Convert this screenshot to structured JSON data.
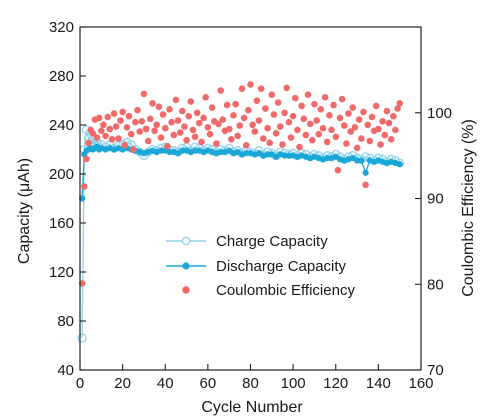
{
  "chart_data": {
    "type": "scatter",
    "title": "",
    "xlabel": "Cycle Number",
    "ylabel_left": "Capacity (μAh)",
    "ylabel_right": "Coulombic Efficiency (%)",
    "xlim": [
      0,
      160
    ],
    "ylim_left": [
      40,
      320
    ],
    "ylim_right": [
      70,
      110
    ],
    "x_ticks": [
      "0",
      "20",
      "40",
      "60",
      "80",
      "100",
      "120",
      "140",
      "160"
    ],
    "y_ticks_left": [
      "40",
      "80",
      "120",
      "160",
      "200",
      "240",
      "280",
      "320"
    ],
    "y_ticks_right": [
      "70",
      "80",
      "90",
      "100"
    ],
    "grid": false,
    "legend_position": "center-right",
    "series": [
      {
        "name": "Charge Capacity",
        "axis": "left",
        "marker": "open-circle",
        "line": true,
        "color": "#8fd3ec",
        "points": [
          [
            1,
            66
          ],
          [
            2,
            220
          ],
          [
            3,
            236
          ],
          [
            4,
            229
          ],
          [
            5,
            226
          ],
          [
            6,
            228
          ],
          [
            7,
            224
          ],
          [
            8,
            226
          ],
          [
            9,
            222
          ],
          [
            10,
            224
          ],
          [
            12,
            222
          ],
          [
            14,
            224
          ],
          [
            16,
            221
          ],
          [
            18,
            223
          ],
          [
            20,
            224
          ],
          [
            22,
            226
          ],
          [
            24,
            224
          ],
          [
            26,
            220
          ],
          [
            28,
            218
          ],
          [
            30,
            215
          ],
          [
            32,
            218
          ],
          [
            34,
            220
          ],
          [
            36,
            219
          ],
          [
            38,
            221
          ],
          [
            40,
            222
          ],
          [
            42,
            220
          ],
          [
            44,
            219
          ],
          [
            46,
            218
          ],
          [
            48,
            221
          ],
          [
            50,
            222
          ],
          [
            52,
            219
          ],
          [
            54,
            222
          ],
          [
            56,
            221
          ],
          [
            58,
            219
          ],
          [
            60,
            221
          ],
          [
            62,
            220
          ],
          [
            64,
            218
          ],
          [
            66,
            220
          ],
          [
            68,
            219
          ],
          [
            70,
            221
          ],
          [
            72,
            218
          ],
          [
            74,
            219
          ],
          [
            76,
            217
          ],
          [
            78,
            219
          ],
          [
            80,
            218
          ],
          [
            82,
            217
          ],
          [
            84,
            219
          ],
          [
            86,
            216
          ],
          [
            88,
            218
          ],
          [
            90,
            217
          ],
          [
            92,
            215
          ],
          [
            94,
            218
          ],
          [
            96,
            217
          ],
          [
            98,
            216
          ],
          [
            100,
            217
          ],
          [
            102,
            215
          ],
          [
            104,
            217
          ],
          [
            106,
            216
          ],
          [
            108,
            214
          ],
          [
            110,
            216
          ],
          [
            112,
            215
          ],
          [
            114,
            213
          ],
          [
            116,
            215
          ],
          [
            118,
            214
          ],
          [
            120,
            216
          ],
          [
            122,
            214
          ],
          [
            124,
            212
          ],
          [
            126,
            214
          ],
          [
            128,
            215
          ],
          [
            130,
            213
          ],
          [
            132,
            212
          ],
          [
            134,
            214
          ],
          [
            136,
            213
          ],
          [
            138,
            211
          ],
          [
            140,
            213
          ],
          [
            142,
            212
          ],
          [
            144,
            210
          ],
          [
            146,
            212
          ],
          [
            148,
            211
          ],
          [
            150,
            209
          ]
        ]
      },
      {
        "name": "Discharge Capacity",
        "axis": "left",
        "marker": "filled-circle",
        "line": true,
        "color": "#1aa7d8",
        "points": [
          [
            1,
            180
          ],
          [
            2,
            216
          ],
          [
            3,
            219
          ],
          [
            4,
            220
          ],
          [
            5,
            221
          ],
          [
            6,
            220
          ],
          [
            7,
            221
          ],
          [
            8,
            222
          ],
          [
            9,
            220
          ],
          [
            10,
            221
          ],
          [
            12,
            220
          ],
          [
            14,
            221
          ],
          [
            16,
            220
          ],
          [
            18,
            221
          ],
          [
            20,
            220
          ],
          [
            22,
            221
          ],
          [
            24,
            220
          ],
          [
            26,
            219
          ],
          [
            28,
            218
          ],
          [
            30,
            217
          ],
          [
            32,
            218
          ],
          [
            34,
            219
          ],
          [
            36,
            218
          ],
          [
            38,
            219
          ],
          [
            40,
            219
          ],
          [
            42,
            218
          ],
          [
            44,
            218
          ],
          [
            46,
            217
          ],
          [
            48,
            219
          ],
          [
            50,
            219
          ],
          [
            52,
            218
          ],
          [
            54,
            219
          ],
          [
            56,
            219
          ],
          [
            58,
            218
          ],
          [
            60,
            219
          ],
          [
            62,
            218
          ],
          [
            64,
            217
          ],
          [
            66,
            218
          ],
          [
            68,
            218
          ],
          [
            70,
            219
          ],
          [
            72,
            217
          ],
          [
            74,
            218
          ],
          [
            76,
            216
          ],
          [
            78,
            217
          ],
          [
            80,
            217
          ],
          [
            82,
            216
          ],
          [
            84,
            217
          ],
          [
            86,
            215
          ],
          [
            88,
            216
          ],
          [
            90,
            216
          ],
          [
            92,
            214
          ],
          [
            94,
            216
          ],
          [
            96,
            215
          ],
          [
            98,
            215
          ],
          [
            100,
            215
          ],
          [
            102,
            214
          ],
          [
            104,
            215
          ],
          [
            106,
            214
          ],
          [
            108,
            213
          ],
          [
            110,
            214
          ],
          [
            112,
            213
          ],
          [
            114,
            212
          ],
          [
            116,
            213
          ],
          [
            118,
            213
          ],
          [
            120,
            214
          ],
          [
            122,
            212
          ],
          [
            124,
            211
          ],
          [
            126,
            212
          ],
          [
            128,
            213
          ],
          [
            130,
            211
          ],
          [
            132,
            211
          ],
          [
            134,
            201
          ],
          [
            136,
            211
          ],
          [
            138,
            210
          ],
          [
            140,
            211
          ],
          [
            142,
            210
          ],
          [
            144,
            209
          ],
          [
            146,
            210
          ],
          [
            148,
            209
          ],
          [
            150,
            208
          ]
        ]
      },
      {
        "name": "Coulombic Efficiency",
        "axis": "right",
        "marker": "filled-circle",
        "line": false,
        "color": "#f06a6a",
        "points": [
          [
            1,
            80.1
          ],
          [
            2,
            91.4
          ],
          [
            3,
            94.6
          ],
          [
            4,
            96.5
          ],
          [
            5,
            98.0
          ],
          [
            6,
            97.6
          ],
          [
            7,
            99.2
          ],
          [
            8,
            97.1
          ],
          [
            9,
            99.4
          ],
          [
            10,
            97.9
          ],
          [
            11,
            98.6
          ],
          [
            12,
            97.3
          ],
          [
            13,
            99.5
          ],
          [
            14,
            98.1
          ],
          [
            15,
            96.9
          ],
          [
            16,
            99.9
          ],
          [
            17,
            98.4
          ],
          [
            18,
            97.0
          ],
          [
            19,
            99.1
          ],
          [
            20,
            100.1
          ],
          [
            21,
            96.2
          ],
          [
            22,
            98.3
          ],
          [
            23,
            99.6
          ],
          [
            24,
            97.5
          ],
          [
            25,
            95.7
          ],
          [
            26,
            98.9
          ],
          [
            27,
            100.3
          ],
          [
            28,
            97.8
          ],
          [
            29,
            99.0
          ],
          [
            30,
            102.2
          ],
          [
            31,
            98.1
          ],
          [
            32,
            96.7
          ],
          [
            33,
            99.3
          ],
          [
            34,
            101.1
          ],
          [
            35,
            97.9
          ],
          [
            36,
            98.6
          ],
          [
            37,
            100.7
          ],
          [
            38,
            97.1
          ],
          [
            39,
            99.8
          ],
          [
            40,
            98.2
          ],
          [
            41,
            96.1
          ],
          [
            42,
            100.4
          ],
          [
            43,
            98.9
          ],
          [
            44,
            97.4
          ],
          [
            45,
            101.5
          ],
          [
            46,
            99.1
          ],
          [
            47,
            97.7
          ],
          [
            48,
            100.2
          ],
          [
            49,
            98.4
          ],
          [
            50,
            96.8
          ],
          [
            51,
            99.6
          ],
          [
            52,
            101.3
          ],
          [
            53,
            98.0
          ],
          [
            54,
            97.2
          ],
          [
            55,
            100.0
          ],
          [
            56,
            98.8
          ],
          [
            57,
            96.6
          ],
          [
            58,
            99.4
          ],
          [
            59,
            101.8
          ],
          [
            60,
            98.3
          ],
          [
            61,
            97.5
          ],
          [
            62,
            100.6
          ],
          [
            63,
            99.0
          ],
          [
            64,
            96.4
          ],
          [
            65,
            98.7
          ],
          [
            66,
            102.6
          ],
          [
            67,
            99.2
          ],
          [
            68,
            97.9
          ],
          [
            69,
            100.9
          ],
          [
            70,
            98.1
          ],
          [
            71,
            96.9
          ],
          [
            72,
            99.7
          ],
          [
            73,
            101.0
          ],
          [
            74,
            97.3
          ],
          [
            75,
            98.5
          ],
          [
            76,
            102.8
          ],
          [
            77,
            99.4
          ],
          [
            78,
            96.2
          ],
          [
            79,
            100.3
          ],
          [
            80,
            103.3
          ],
          [
            81,
            98.6
          ],
          [
            82,
            97.8
          ],
          [
            83,
            101.4
          ],
          [
            84,
            99.1
          ],
          [
            85,
            102.8
          ],
          [
            86,
            97.0
          ],
          [
            87,
            100.5
          ],
          [
            88,
            98.2
          ],
          [
            89,
            96.5
          ],
          [
            90,
            102.1
          ],
          [
            91,
            99.8
          ],
          [
            92,
            97.6
          ],
          [
            93,
            101.2
          ],
          [
            94,
            98.4
          ],
          [
            95,
            96.3
          ],
          [
            96,
            100.0
          ],
          [
            97,
            102.9
          ],
          [
            98,
            98.9
          ],
          [
            99,
            97.1
          ],
          [
            100,
            99.6
          ],
          [
            101,
            101.7
          ],
          [
            102,
            98.0
          ],
          [
            103,
            96.0
          ],
          [
            104,
            100.8
          ],
          [
            105,
            99.3
          ],
          [
            106,
            97.4
          ],
          [
            107,
            102.1
          ],
          [
            108,
            98.7
          ],
          [
            109,
            96.8
          ],
          [
            110,
            101.0
          ],
          [
            111,
            99.1
          ],
          [
            112,
            97.5
          ],
          [
            113,
            100.4
          ],
          [
            114,
            98.2
          ],
          [
            115,
            101.8
          ],
          [
            116,
            96.6
          ],
          [
            117,
            99.7
          ],
          [
            118,
            98.0
          ],
          [
            119,
            100.9
          ],
          [
            120,
            97.2
          ],
          [
            121,
            93.3
          ],
          [
            122,
            99.4
          ],
          [
            123,
            101.6
          ],
          [
            124,
            98.5
          ],
          [
            125,
            96.4
          ],
          [
            126,
            99.9
          ],
          [
            127,
            97.8
          ],
          [
            128,
            100.6
          ],
          [
            129,
            98.3
          ],
          [
            130,
            95.9
          ],
          [
            131,
            99.2
          ],
          [
            132,
            97.0
          ],
          [
            133,
            100.1
          ],
          [
            134,
            91.6
          ],
          [
            135,
            98.6
          ],
          [
            136,
            96.7
          ],
          [
            137,
            99.5
          ],
          [
            138,
            97.9
          ],
          [
            139,
            100.8
          ],
          [
            140,
            98.1
          ],
          [
            141,
            96.3
          ],
          [
            142,
            99.0
          ],
          [
            143,
            97.4
          ],
          [
            144,
            100.2
          ],
          [
            145,
            98.8
          ],
          [
            146,
            96.9
          ],
          [
            147,
            99.6
          ],
          [
            148,
            98.0
          ],
          [
            149,
            100.5
          ],
          [
            150,
            101.1
          ]
        ]
      }
    ]
  }
}
